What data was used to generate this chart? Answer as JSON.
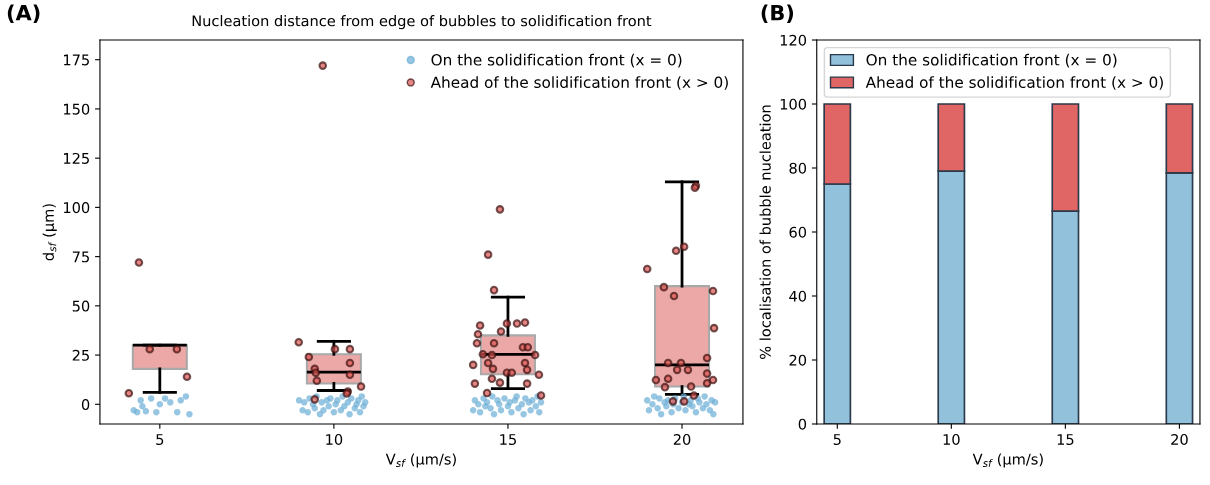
{
  "chart_data": [
    {
      "type": "box",
      "title": "Nucleation distance from edge of bubbles to solidification front",
      "xlabel": "V$_{sf}$ (µm/s)",
      "ylabel": "d$_{sf}$ (µm)",
      "annotations": [
        "(A)"
      ],
      "x": [
        5,
        10,
        15,
        20
      ],
      "xlim": [
        3.28,
        21.75
      ],
      "xticks": [
        5,
        10,
        15,
        20
      ],
      "ylim": [
        -10,
        185
      ],
      "yticks": [
        0,
        25,
        50,
        75,
        100,
        125,
        150,
        175
      ],
      "boxes": [
        {
          "low": 6,
          "q1": 18,
          "median": 30,
          "q3": 30,
          "high": 30
        },
        {
          "low": 7,
          "q1": 10.6,
          "median": 16.3,
          "q3": 25.4,
          "high": 32
        },
        {
          "low": 8,
          "q1": 15.3,
          "median": 25.4,
          "q3": 35,
          "high": 54.4
        },
        {
          "low": 5,
          "q1": 9,
          "median": 20,
          "q3": 60,
          "high": 113
        }
      ],
      "legend": "top right",
      "marker": "circle",
      "grid": false,
      "series": [
        {
          "name": "On the solidification front (x = 0)",
          "type": "scatter",
          "color": "#6baed6",
          "x": [
            4.25,
            4.35,
            4.45,
            4.5,
            4.6,
            4.75,
            4.9,
            5.0,
            5.15,
            5.3,
            5.5,
            5.6,
            5.75,
            5.85,
            9.0,
            9.1,
            9.15,
            9.25,
            9.3,
            9.4,
            9.45,
            9.5,
            9.6,
            9.65,
            9.7,
            9.8,
            9.85,
            9.9,
            10.0,
            10.05,
            10.1,
            10.2,
            10.25,
            10.3,
            10.4,
            10.45,
            10.5,
            10.6,
            10.65,
            10.7,
            10.75,
            10.8,
            10.85,
            10.9,
            14.0,
            14.05,
            14.15,
            14.2,
            14.3,
            14.35,
            14.4,
            14.5,
            14.55,
            14.6,
            14.7,
            14.75,
            14.8,
            14.9,
            15.0,
            15.05,
            15.1,
            15.2,
            15.25,
            15.3,
            15.4,
            15.45,
            15.5,
            15.6,
            15.65,
            15.7,
            15.8,
            15.85,
            15.9,
            15.95,
            19.0,
            19.05,
            19.15,
            19.2,
            19.3,
            19.35,
            19.4,
            19.5,
            19.55,
            19.6,
            19.7,
            19.75,
            19.8,
            19.9,
            20.0,
            20.05,
            20.1,
            20.2,
            20.25,
            20.3,
            20.4,
            20.45,
            20.5,
            20.6,
            20.65,
            20.7,
            20.8,
            20.85,
            20.9,
            20.95
          ],
          "values": [
            -3,
            -4,
            2,
            -1,
            -3.5,
            3,
            -4,
            0,
            3,
            1,
            -4,
            2,
            4,
            -5,
            2,
            -3,
            1,
            -4,
            3,
            0,
            -2,
            4,
            -5,
            1,
            -3,
            2,
            -1,
            3,
            -4,
            0,
            2,
            -3,
            4,
            -1,
            1,
            -5,
            3,
            -2,
            0,
            2,
            -4,
            4,
            -1,
            1,
            -3,
            2,
            0,
            -4,
            3,
            -1,
            1,
            -2,
            4,
            -5,
            2,
            0,
            -3,
            3,
            -1,
            1,
            -4,
            2,
            4,
            -2,
            0,
            -5,
            3,
            1,
            -3,
            2,
            -1,
            4,
            -4,
            1,
            2,
            -3,
            0,
            4,
            -2,
            3,
            -5,
            1,
            -1,
            2,
            -4,
            0,
            3,
            -2,
            1,
            4,
            -3,
            0,
            2,
            -1,
            -4,
            3,
            1,
            -2,
            4,
            0,
            -3,
            2,
            -5,
            1
          ]
        },
        {
          "name": "Ahead of the solidification front (x > 0)",
          "type": "scatter",
          "color": "#d9534f",
          "x": [
            4.4,
            4.71,
            5.49,
            5.78,
            4.11,
            8.99,
            9.68,
            10.03,
            10.46,
            9.28,
            10.46,
            9.45,
            9.48,
            10.46,
            9.51,
            10.78,
            10.4,
            10.37,
            9.45,
            14.77,
            14.43,
            14.6,
            14.2,
            14.97,
            15.26,
            15.49,
            14.14,
            14.8,
            14.11,
            14.6,
            15.43,
            15.57,
            14.28,
            14.54,
            15.78,
            14.43,
            15.49,
            14.0,
            14.57,
            15.55,
            14.97,
            15.11,
            15.89,
            14.54,
            14.77,
            14.05,
            15.55,
            14.4,
            15.95,
            20.4,
            20.37,
            20.06,
            19.83,
            19.0,
            19.48,
            20.89,
            19.77,
            20.92,
            20.72,
            19.6,
            19.97,
            19.86,
            20.17,
            20.72,
            19.25,
            19.6,
            20.89,
            20.72,
            20.26,
            19.51,
            20.34,
            19.74,
            20.06
          ],
          "values": [
            72,
            28,
            28,
            14,
            5.6,
            31.5,
            172,
            28,
            28,
            24,
            21,
            18,
            16,
            15,
            12,
            9,
            6.5,
            5.5,
            2.5,
            99,
            76,
            58,
            40,
            41,
            41,
            41.5,
            35.6,
            37,
            31,
            31,
            29,
            29,
            25.4,
            25,
            25,
            21,
            21,
            20,
            18,
            17.5,
            16,
            16,
            15,
            13,
            11,
            10.5,
            10.5,
            5.7,
            4.5,
            111,
            110,
            80,
            78,
            68.7,
            59.5,
            57.5,
            55,
            38.7,
            23.5,
            21,
            21,
            17.5,
            17.5,
            15.6,
            12.3,
            13,
            12.3,
            10.7,
            9,
            8.7,
            4.5,
            1.5,
            1.5
          ]
        }
      ]
    },
    {
      "type": "bar",
      "stacked": true,
      "xlabel": "V$_{sf}$ (µm/s)",
      "ylabel": "% localisation of bubble nucleation",
      "annotations": [
        "(B)"
      ],
      "categories": [
        "5",
        "10",
        "15",
        "20"
      ],
      "ylim": [
        0,
        120
      ],
      "yticks": [
        0,
        20,
        40,
        60,
        80,
        100,
        120
      ],
      "legend": "top left",
      "grid": false,
      "series": [
        {
          "name": "On the solidification front (x = 0)",
          "color": "#92c1dc",
          "values": [
            75,
            79,
            66.5,
            78.5
          ]
        },
        {
          "name": "Ahead of the solidification front (x > 0)",
          "color": "#e06666",
          "values": [
            25,
            21,
            33.5,
            21.5
          ]
        }
      ]
    }
  ]
}
